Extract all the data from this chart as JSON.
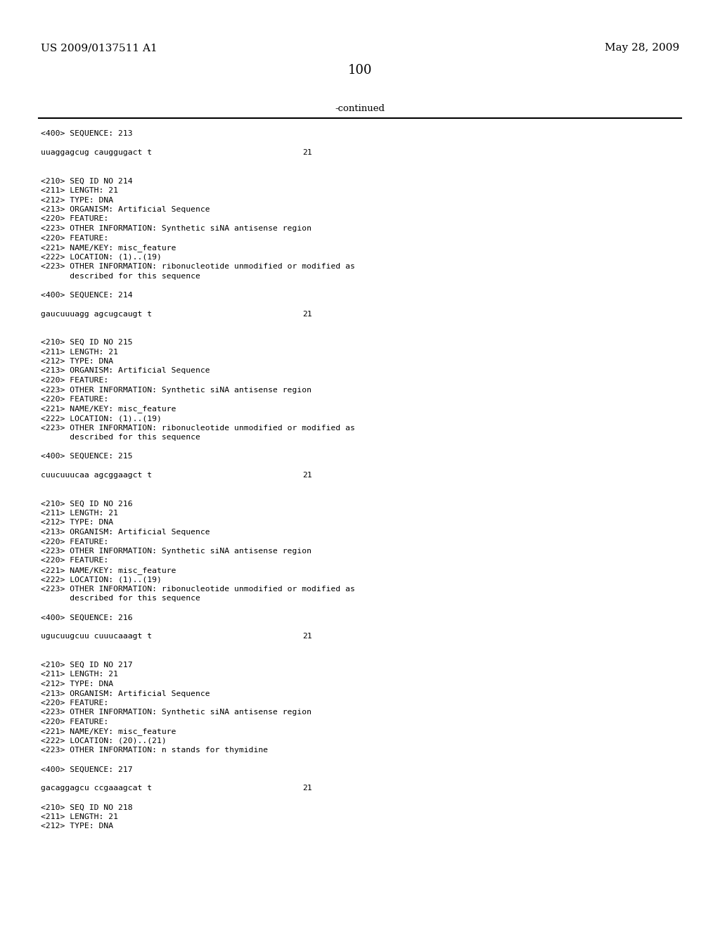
{
  "header_left": "US 2009/0137511 A1",
  "header_right": "May 28, 2009",
  "page_number": "100",
  "continued_text": "-continued",
  "background_color": "#ffffff",
  "text_color": "#000000",
  "font_size": 8.2,
  "header_font_size": 11.0,
  "page_num_font_size": 13.0,
  "lines": [
    {
      "text": "<400> SEQUENCE: 213",
      "indent": 0,
      "type": "meta"
    },
    {
      "text": "",
      "indent": 0,
      "type": "blank"
    },
    {
      "text": "uuaggagcug cauggugact t",
      "indent": 0,
      "type": "seq",
      "num": "21"
    },
    {
      "text": "",
      "indent": 0,
      "type": "blank"
    },
    {
      "text": "",
      "indent": 0,
      "type": "blank"
    },
    {
      "text": "<210> SEQ ID NO 214",
      "indent": 0,
      "type": "meta"
    },
    {
      "text": "<211> LENGTH: 21",
      "indent": 0,
      "type": "meta"
    },
    {
      "text": "<212> TYPE: DNA",
      "indent": 0,
      "type": "meta"
    },
    {
      "text": "<213> ORGANISM: Artificial Sequence",
      "indent": 0,
      "type": "meta"
    },
    {
      "text": "<220> FEATURE:",
      "indent": 0,
      "type": "meta"
    },
    {
      "text": "<223> OTHER INFORMATION: Synthetic siNA antisense region",
      "indent": 0,
      "type": "meta"
    },
    {
      "text": "<220> FEATURE:",
      "indent": 0,
      "type": "meta"
    },
    {
      "text": "<221> NAME/KEY: misc_feature",
      "indent": 0,
      "type": "meta"
    },
    {
      "text": "<222> LOCATION: (1)..(19)",
      "indent": 0,
      "type": "meta"
    },
    {
      "text": "<223> OTHER INFORMATION: ribonucleotide unmodified or modified as",
      "indent": 0,
      "type": "meta"
    },
    {
      "text": "      described for this sequence",
      "indent": 0,
      "type": "meta"
    },
    {
      "text": "",
      "indent": 0,
      "type": "blank"
    },
    {
      "text": "<400> SEQUENCE: 214",
      "indent": 0,
      "type": "meta"
    },
    {
      "text": "",
      "indent": 0,
      "type": "blank"
    },
    {
      "text": "gaucuuuagg agcugcaugt t",
      "indent": 0,
      "type": "seq",
      "num": "21"
    },
    {
      "text": "",
      "indent": 0,
      "type": "blank"
    },
    {
      "text": "",
      "indent": 0,
      "type": "blank"
    },
    {
      "text": "<210> SEQ ID NO 215",
      "indent": 0,
      "type": "meta"
    },
    {
      "text": "<211> LENGTH: 21",
      "indent": 0,
      "type": "meta"
    },
    {
      "text": "<212> TYPE: DNA",
      "indent": 0,
      "type": "meta"
    },
    {
      "text": "<213> ORGANISM: Artificial Sequence",
      "indent": 0,
      "type": "meta"
    },
    {
      "text": "<220> FEATURE:",
      "indent": 0,
      "type": "meta"
    },
    {
      "text": "<223> OTHER INFORMATION: Synthetic siNA antisense region",
      "indent": 0,
      "type": "meta"
    },
    {
      "text": "<220> FEATURE:",
      "indent": 0,
      "type": "meta"
    },
    {
      "text": "<221> NAME/KEY: misc_feature",
      "indent": 0,
      "type": "meta"
    },
    {
      "text": "<222> LOCATION: (1)..(19)",
      "indent": 0,
      "type": "meta"
    },
    {
      "text": "<223> OTHER INFORMATION: ribonucleotide unmodified or modified as",
      "indent": 0,
      "type": "meta"
    },
    {
      "text": "      described for this sequence",
      "indent": 0,
      "type": "meta"
    },
    {
      "text": "",
      "indent": 0,
      "type": "blank"
    },
    {
      "text": "<400> SEQUENCE: 215",
      "indent": 0,
      "type": "meta"
    },
    {
      "text": "",
      "indent": 0,
      "type": "blank"
    },
    {
      "text": "cuucuuucaa agcggaagct t",
      "indent": 0,
      "type": "seq",
      "num": "21"
    },
    {
      "text": "",
      "indent": 0,
      "type": "blank"
    },
    {
      "text": "",
      "indent": 0,
      "type": "blank"
    },
    {
      "text": "<210> SEQ ID NO 216",
      "indent": 0,
      "type": "meta"
    },
    {
      "text": "<211> LENGTH: 21",
      "indent": 0,
      "type": "meta"
    },
    {
      "text": "<212> TYPE: DNA",
      "indent": 0,
      "type": "meta"
    },
    {
      "text": "<213> ORGANISM: Artificial Sequence",
      "indent": 0,
      "type": "meta"
    },
    {
      "text": "<220> FEATURE:",
      "indent": 0,
      "type": "meta"
    },
    {
      "text": "<223> OTHER INFORMATION: Synthetic siNA antisense region",
      "indent": 0,
      "type": "meta"
    },
    {
      "text": "<220> FEATURE:",
      "indent": 0,
      "type": "meta"
    },
    {
      "text": "<221> NAME/KEY: misc_feature",
      "indent": 0,
      "type": "meta"
    },
    {
      "text": "<222> LOCATION: (1)..(19)",
      "indent": 0,
      "type": "meta"
    },
    {
      "text": "<223> OTHER INFORMATION: ribonucleotide unmodified or modified as",
      "indent": 0,
      "type": "meta"
    },
    {
      "text": "      described for this sequence",
      "indent": 0,
      "type": "meta"
    },
    {
      "text": "",
      "indent": 0,
      "type": "blank"
    },
    {
      "text": "<400> SEQUENCE: 216",
      "indent": 0,
      "type": "meta"
    },
    {
      "text": "",
      "indent": 0,
      "type": "blank"
    },
    {
      "text": "ugucuugcuu cuuucaaagt t",
      "indent": 0,
      "type": "seq",
      "num": "21"
    },
    {
      "text": "",
      "indent": 0,
      "type": "blank"
    },
    {
      "text": "",
      "indent": 0,
      "type": "blank"
    },
    {
      "text": "<210> SEQ ID NO 217",
      "indent": 0,
      "type": "meta"
    },
    {
      "text": "<211> LENGTH: 21",
      "indent": 0,
      "type": "meta"
    },
    {
      "text": "<212> TYPE: DNA",
      "indent": 0,
      "type": "meta"
    },
    {
      "text": "<213> ORGANISM: Artificial Sequence",
      "indent": 0,
      "type": "meta"
    },
    {
      "text": "<220> FEATURE:",
      "indent": 0,
      "type": "meta"
    },
    {
      "text": "<223> OTHER INFORMATION: Synthetic siNA antisense region",
      "indent": 0,
      "type": "meta"
    },
    {
      "text": "<220> FEATURE:",
      "indent": 0,
      "type": "meta"
    },
    {
      "text": "<221> NAME/KEY: misc_feature",
      "indent": 0,
      "type": "meta"
    },
    {
      "text": "<222> LOCATION: (20)..(21)",
      "indent": 0,
      "type": "meta"
    },
    {
      "text": "<223> OTHER INFORMATION: n stands for thymidine",
      "indent": 0,
      "type": "meta"
    },
    {
      "text": "",
      "indent": 0,
      "type": "blank"
    },
    {
      "text": "<400> SEQUENCE: 217",
      "indent": 0,
      "type": "meta"
    },
    {
      "text": "",
      "indent": 0,
      "type": "blank"
    },
    {
      "text": "gacaggagcu ccgaaagcat t",
      "indent": 0,
      "type": "seq",
      "num": "21"
    },
    {
      "text": "",
      "indent": 0,
      "type": "blank"
    },
    {
      "text": "<210> SEQ ID NO 218",
      "indent": 0,
      "type": "meta"
    },
    {
      "text": "<211> LENGTH: 21",
      "indent": 0,
      "type": "meta"
    },
    {
      "text": "<212> TYPE: DNA",
      "indent": 0,
      "type": "meta"
    }
  ]
}
